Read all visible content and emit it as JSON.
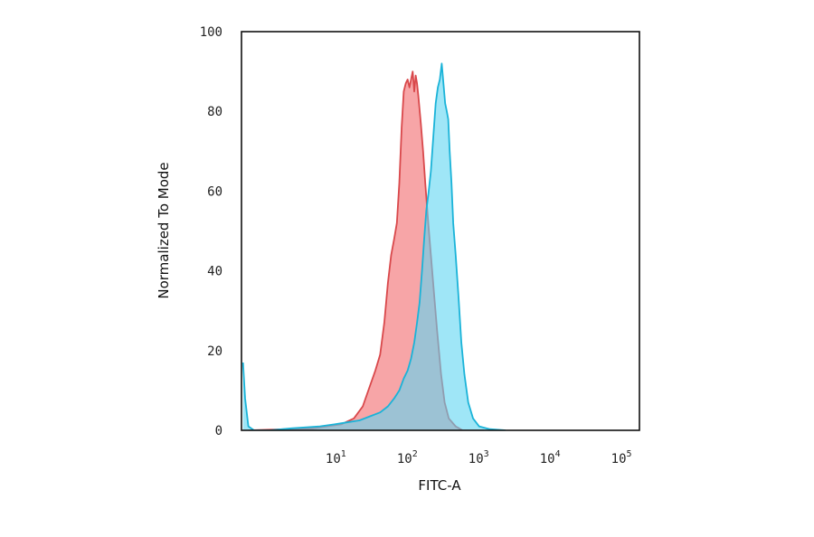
{
  "chart_data": {
    "type": "area",
    "xlabel": "FITC-A",
    "ylabel": "Normalized To Mode",
    "x_scale": "log",
    "xlim": [
      0.4,
      150000
    ],
    "ylim": [
      0,
      100
    ],
    "y_ticks": [
      {
        "value": 0,
        "label": "0"
      },
      {
        "value": 20,
        "label": "20"
      },
      {
        "value": 40,
        "label": "40"
      },
      {
        "value": 60,
        "label": "60"
      },
      {
        "value": 80,
        "label": "80"
      },
      {
        "value": 100,
        "label": "100"
      }
    ],
    "x_ticks": [
      {
        "value": 10,
        "base": "10",
        "exp": "1"
      },
      {
        "value": 100,
        "base": "10",
        "exp": "2"
      },
      {
        "value": 1000,
        "base": "10",
        "exp": "3"
      },
      {
        "value": 10000,
        "base": "10",
        "exp": "4"
      },
      {
        "value": 100000,
        "base": "10",
        "exp": "5"
      }
    ],
    "grid": false,
    "series": [
      {
        "color": "#d9484b",
        "fill": "#f7a0a2",
        "points": [
          [
            0.5,
            0
          ],
          [
            4,
            0.5
          ],
          [
            10,
            1.5
          ],
          [
            15,
            3
          ],
          [
            20,
            6
          ],
          [
            25,
            11
          ],
          [
            30,
            15
          ],
          [
            35,
            19
          ],
          [
            40,
            27
          ],
          [
            45,
            37
          ],
          [
            50,
            44
          ],
          [
            55,
            48
          ],
          [
            60,
            52
          ],
          [
            65,
            62
          ],
          [
            70,
            76
          ],
          [
            75,
            85
          ],
          [
            80,
            87
          ],
          [
            85,
            88
          ],
          [
            90,
            86
          ],
          [
            95,
            88
          ],
          [
            100,
            90
          ],
          [
            105,
            85
          ],
          [
            110,
            89
          ],
          [
            115,
            87
          ],
          [
            120,
            84
          ],
          [
            130,
            77
          ],
          [
            140,
            70
          ],
          [
            150,
            62
          ],
          [
            165,
            52
          ],
          [
            180,
            44
          ],
          [
            200,
            34
          ],
          [
            220,
            25
          ],
          [
            250,
            14
          ],
          [
            280,
            7
          ],
          [
            320,
            3
          ],
          [
            400,
            1
          ],
          [
            500,
            0
          ],
          [
            1000,
            0
          ]
        ]
      },
      {
        "color": "#1ab3d8",
        "fill": "#5fd6f2",
        "points": [
          [
            0.42,
            17
          ],
          [
            0.45,
            8
          ],
          [
            0.5,
            1
          ],
          [
            0.6,
            0
          ],
          [
            1,
            0
          ],
          [
            2,
            0.5
          ],
          [
            5,
            1
          ],
          [
            8,
            1.5
          ],
          [
            12,
            2
          ],
          [
            18,
            2.5
          ],
          [
            25,
            3.5
          ],
          [
            35,
            4.5
          ],
          [
            45,
            6
          ],
          [
            55,
            8
          ],
          [
            65,
            10
          ],
          [
            75,
            13
          ],
          [
            85,
            15
          ],
          [
            95,
            18
          ],
          [
            105,
            22
          ],
          [
            115,
            27
          ],
          [
            125,
            32
          ],
          [
            135,
            40
          ],
          [
            145,
            48
          ],
          [
            155,
            55
          ],
          [
            165,
            59
          ],
          [
            180,
            65
          ],
          [
            195,
            74
          ],
          [
            210,
            82
          ],
          [
            225,
            86
          ],
          [
            240,
            88
          ],
          [
            255,
            92
          ],
          [
            270,
            87
          ],
          [
            285,
            82
          ],
          [
            300,
            80
          ],
          [
            315,
            78
          ],
          [
            330,
            70
          ],
          [
            350,
            62
          ],
          [
            370,
            52
          ],
          [
            400,
            44
          ],
          [
            440,
            33
          ],
          [
            480,
            22
          ],
          [
            530,
            14
          ],
          [
            600,
            7
          ],
          [
            700,
            3
          ],
          [
            850,
            1
          ],
          [
            1200,
            0.3
          ],
          [
            2000,
            0
          ]
        ]
      }
    ]
  }
}
